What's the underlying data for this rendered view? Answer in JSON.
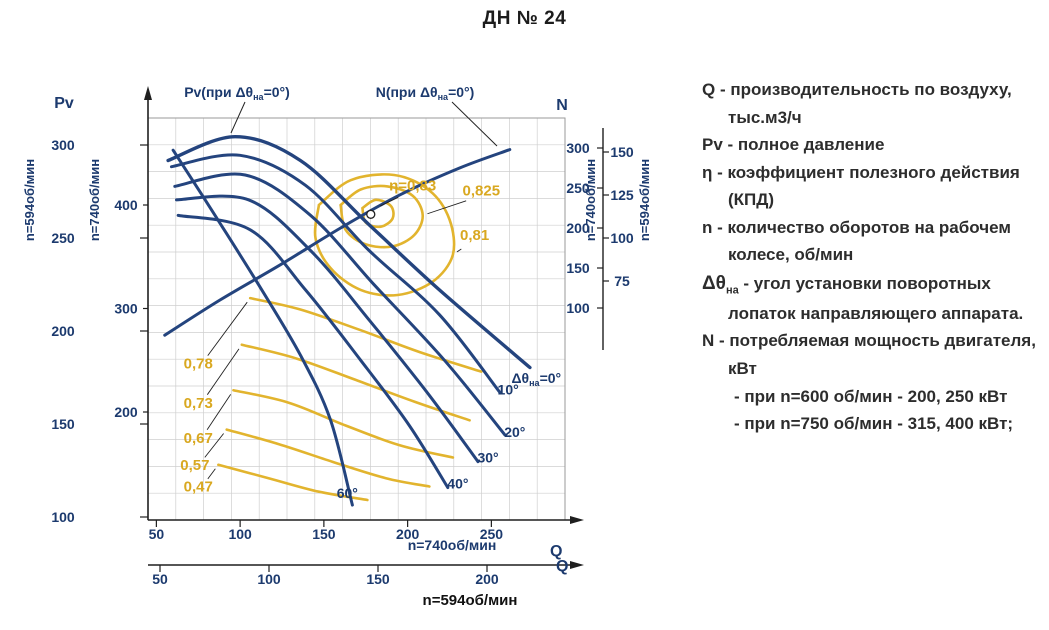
{
  "title": "ДН № 24",
  "colors": {
    "curve_blue": "#24447e",
    "gold": "#e2b42e",
    "gold_text": "#d9a820",
    "grid": "#cfcfcf",
    "axis": "#1f1f1f",
    "tick_text_blue": "#1c3a6e",
    "background": "#ffffff"
  },
  "chart_data": {
    "type": "line",
    "title": "ДН № 24",
    "grid": "on",
    "axes": {
      "x_bottom_primary": {
        "quantity": "Q",
        "label": "n=740об/мин",
        "ticks": [
          50,
          100,
          150,
          200,
          250
        ],
        "range": [
          45,
          294
        ]
      },
      "x_bottom_secondary": {
        "quantity": "Q",
        "label": "n=594об/мин",
        "ticks": [
          50,
          100,
          150,
          200
        ]
      },
      "y_left_outer": {
        "quantity": "Pv",
        "label": "n=594об/мин",
        "ticks": [
          300,
          250,
          200,
          150,
          100
        ]
      },
      "y_left_inner": {
        "quantity": "Pv",
        "label": "n=740об/мин",
        "ticks": [
          400,
          300,
          200
        ],
        "range": [
          96,
          501
        ]
      },
      "y_right_inner": {
        "quantity": "N",
        "label": "n=740об/мин",
        "ticks": [
          300,
          250,
          200,
          150,
          100
        ]
      },
      "y_right_outer": {
        "quantity": "N",
        "label": "n=594об/мин",
        "ticks": [
          150,
          125,
          100,
          75
        ]
      }
    },
    "pv_curve_label": {
      "pre": "Pv(при Δθ",
      "sub": "на",
      "post": "=0°)"
    },
    "power_curve_label": {
      "pre": "N(при Δθ",
      "sub": "на",
      "post": "=0°)"
    },
    "pressure_curves": [
      {
        "angle": "0°",
        "label": "Δθна=0°",
        "label_parts": {
          "pre": "Δθ",
          "sub": "на",
          "post": "=0°"
        },
        "label_at": [
          262,
          228
        ],
        "anchor": "start",
        "points_q_pv": [
          [
            57,
            443
          ],
          [
            97,
            466
          ],
          [
            136,
            443
          ],
          [
            177,
            381
          ],
          [
            219,
            318
          ],
          [
            273,
            243
          ]
        ]
      },
      {
        "angle": "10°",
        "label": "10°",
        "label_at": [
          260,
          217
        ],
        "anchor": "middle",
        "points_q_pv": [
          [
            59,
            437
          ],
          [
            100,
            448
          ],
          [
            139,
            419
          ],
          [
            177,
            356
          ],
          [
            219,
            294
          ],
          [
            255,
            219
          ]
        ]
      },
      {
        "angle": "20°",
        "label": "20°",
        "label_at": [
          264,
          176
        ],
        "anchor": "middle",
        "points_q_pv": [
          [
            61,
            418
          ],
          [
            103,
            429
          ],
          [
            142,
            390
          ],
          [
            180,
            323
          ],
          [
            222,
            250
          ],
          [
            258,
            178
          ]
        ]
      },
      {
        "angle": "30°",
        "label": "30°",
        "label_at": [
          248,
          151
        ],
        "anchor": "middle",
        "points_q_pv": [
          [
            62,
            405
          ],
          [
            105,
            405
          ],
          [
            142,
            356
          ],
          [
            177,
            289
          ],
          [
            213,
            216
          ],
          [
            242,
            152
          ]
        ]
      },
      {
        "angle": "40°",
        "label": "40°",
        "label_at": [
          230,
          126
        ],
        "anchor": "middle",
        "points_q_pv": [
          [
            63,
            390
          ],
          [
            106,
            376
          ],
          [
            139,
            318
          ],
          [
            172,
            250
          ],
          [
            201,
            187
          ],
          [
            224,
            127
          ]
        ]
      },
      {
        "angle": "60°",
        "label": "60°",
        "label_at": [
          164,
          117
        ],
        "anchor": "middle",
        "points_q_pv": [
          [
            60,
            453
          ],
          [
            85,
            390
          ],
          [
            111,
            323
          ],
          [
            136,
            255
          ],
          [
            154,
            192
          ],
          [
            167,
            110
          ]
        ]
      }
    ],
    "power_curve": {
      "points_q_n": [
        [
          55,
          66
        ],
        [
          88,
          110
        ],
        [
          124,
          154
        ],
        [
          160,
          200
        ],
        [
          195,
          241
        ],
        [
          231,
          275
        ],
        [
          261,
          298
        ]
      ]
    },
    "design_point": {
      "q": 178,
      "pv": 391
    },
    "efficiency_contours": [
      {
        "label": "η=0,83",
        "value": 0.83,
        "closed": true,
        "label_at": [
          203,
          414
        ],
        "leader_to": [
          181,
          397
        ],
        "points_q_pv": [
          [
            173,
            397
          ],
          [
            181,
            405
          ],
          [
            190,
            399
          ],
          [
            191,
            387
          ],
          [
            184,
            379
          ],
          [
            175,
            383
          ],
          [
            173,
            397
          ]
        ]
      },
      {
        "label": "0,825",
        "value": 0.825,
        "closed": true,
        "label_at": [
          244,
          409
        ],
        "leader_to": [
          209,
          390
        ],
        "points_q_pv": [
          [
            160,
            400
          ],
          [
            172,
            415
          ],
          [
            188,
            418
          ],
          [
            203,
            409
          ],
          [
            209,
            390
          ],
          [
            204,
            371
          ],
          [
            191,
            360
          ],
          [
            175,
            362
          ],
          [
            163,
            376
          ],
          [
            160,
            400
          ]
        ]
      },
      {
        "label": "0,81",
        "value": 0.81,
        "closed": true,
        "label_at": [
          240,
          366
        ],
        "leader_to": [
          227,
          352
        ],
        "points_q_pv": [
          [
            147,
            400
          ],
          [
            166,
            424
          ],
          [
            192,
            429
          ],
          [
            213,
            414
          ],
          [
            225,
            386
          ],
          [
            227,
            352
          ],
          [
            215,
            326
          ],
          [
            194,
            313
          ],
          [
            172,
            318
          ],
          [
            154,
            339
          ],
          [
            145,
            368
          ],
          [
            147,
            400
          ]
        ]
      },
      {
        "label": "0,78",
        "value": 0.78,
        "closed": false,
        "label_at": [
          75,
          242
        ],
        "leader_to": [
          106,
          310
        ],
        "points_q_pv": [
          [
            106,
            310
          ],
          [
            136,
            299
          ],
          [
            172,
            279
          ],
          [
            207,
            258
          ],
          [
            244,
            239
          ]
        ]
      },
      {
        "label": "0,73",
        "value": 0.73,
        "closed": false,
        "label_at": [
          75,
          204
        ],
        "leader_to": [
          101,
          265
        ],
        "points_q_pv": [
          [
            101,
            265
          ],
          [
            133,
            252
          ],
          [
            169,
            231
          ],
          [
            204,
            210
          ],
          [
            237,
            192
          ]
        ]
      },
      {
        "label": "0,67",
        "value": 0.67,
        "closed": false,
        "label_at": [
          75,
          170
        ],
        "leader_to": [
          96,
          221
        ],
        "points_q_pv": [
          [
            96,
            221
          ],
          [
            129,
            209
          ],
          [
            163,
            187
          ],
          [
            195,
            168
          ],
          [
            227,
            156
          ]
        ]
      },
      {
        "label": "0,57",
        "value": 0.57,
        "closed": false,
        "label_at": [
          73,
          144
        ],
        "leader_to": [
          92,
          183
        ],
        "points_q_pv": [
          [
            92,
            183
          ],
          [
            123,
            169
          ],
          [
            155,
            152
          ],
          [
            187,
            136
          ],
          [
            213,
            128
          ]
        ]
      },
      {
        "label": "0,47",
        "value": 0.47,
        "closed": false,
        "label_at": [
          75,
          123
        ],
        "leader_to": [
          87,
          149
        ],
        "points_q_pv": [
          [
            87,
            149
          ],
          [
            117,
            136
          ],
          [
            147,
            123
          ],
          [
            176,
            115
          ]
        ]
      }
    ]
  },
  "legend": {
    "lines": [
      {
        "text": "Q - производительность по воздуху,",
        "indent": 0
      },
      {
        "text": "тыс.м3/ч",
        "indent": 1
      },
      {
        "text": "Pv - полное давление",
        "indent": 0
      },
      {
        "text": "η - коэффициент полезного действия",
        "indent": 0
      },
      {
        "text": "(КПД)",
        "indent": 1
      },
      {
        "text": "n - количество оборотов на рабочем",
        "indent": 0
      },
      {
        "text": "колесе, об/мин",
        "indent": 1
      },
      {
        "parts": {
          "bold": "Δθ",
          "sub": "на",
          "rest": " - угол  установки поворотных"
        },
        "indent": 0
      },
      {
        "text": "лопаток направляющего аппарата.",
        "indent": 1
      },
      {
        "text": "N - потребляемая мощность двигателя,",
        "indent": 0
      },
      {
        "text": "кВт",
        "indent": 1
      },
      {
        "text": "- при n=600 об/мин - 200, 250 кВт",
        "indent": 2
      },
      {
        "text": "- при n=750 об/мин - 315, 400 кВт;",
        "indent": 2
      }
    ]
  }
}
